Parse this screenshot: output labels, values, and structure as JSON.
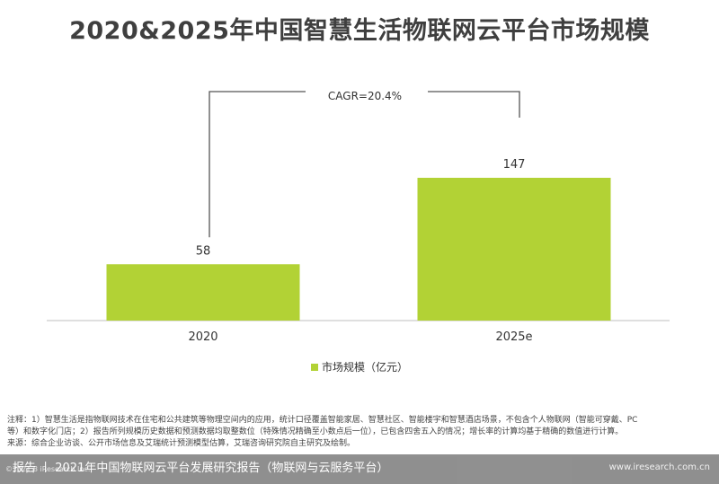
{
  "title": "2020&2025年中国智慧生活物联网云平台市场规模",
  "chart_data": {
    "type": "bar",
    "categories": [
      "2020",
      "2025e"
    ],
    "values": [
      58,
      147
    ],
    "series": [
      {
        "name": "市场规模（亿元）",
        "values": [
          58,
          147
        ]
      }
    ],
    "ylim": [
      0,
      160
    ],
    "annotation": "CAGR=20.4%",
    "legend_position": "bottom",
    "bar_color": "#b2d235",
    "grid": false
  },
  "legend": {
    "label": "市场规模（亿元）",
    "color": "#b2d235"
  },
  "notes": {
    "line1": "注释：1）智慧生活是指物联网技术在住宅和公共建筑等物理空间内的应用，统计口径覆盖智能家居、智慧社区、智能楼宇和智慧酒店场景，不包含个人物联网（智能可穿戴、PC",
    "line2": "等）和数字化门店；2）报告所列规模历史数据和预测数据均取整数位（特殊情况精确至小数点后一位），已包含四舍五入的情况；增长率的计算均基于精确的数值进行计算。",
    "line3": "来源：综合企业访谈、公开市场信息及艾瑞统计预测模型估算，艾瑞咨询研究院自主研究及绘制。"
  },
  "footer": {
    "copyright": "©2021.8 iResearch Inc.",
    "report_label": "报告 丨 2021年中国物联网云平台发展研究报告（物联网与云服务平台）",
    "website": "www.iresearch.com.cn"
  }
}
